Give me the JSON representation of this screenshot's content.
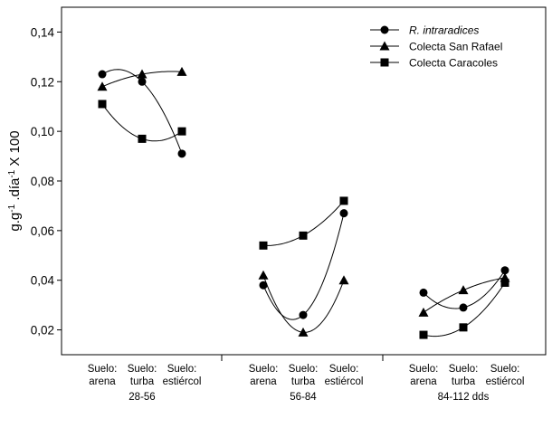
{
  "chart_data": {
    "type": "line",
    "title": "",
    "xlabel": "",
    "ylabel": "g.g-1.día-1 X 100",
    "ylabel_parts": {
      "base": "g.g",
      "sup1": "-1",
      "mid": " .día",
      "sup2": "-1",
      "tail": " X 100"
    },
    "ylim": [
      0.01,
      0.15
    ],
    "yticks": [
      "0,02",
      "0,04",
      "0,06",
      "0,08",
      "0,10",
      "0,12",
      "0,14"
    ],
    "grid": false,
    "legend_position": "top-right",
    "groups": [
      {
        "period": "28-56",
        "categories": [
          [
            "Suelo:",
            "arena"
          ],
          [
            "Suelo:",
            "turba"
          ],
          [
            "Suelo:",
            "estiércol"
          ]
        ]
      },
      {
        "period": "56-84",
        "categories": [
          [
            "Suelo:",
            "arena"
          ],
          [
            "Suelo:",
            "turba"
          ],
          [
            "Suelo:",
            "estiércol"
          ]
        ]
      },
      {
        "period": "84-112 dds",
        "categories": [
          [
            "Suelo:",
            "arena"
          ],
          [
            "Suelo:",
            "turba"
          ],
          [
            "Suelo:",
            "estiércol"
          ]
        ]
      }
    ],
    "series": [
      {
        "name": "R. intraradices",
        "italic": true,
        "marker": "circle",
        "values": [
          [
            0.123,
            0.12,
            0.091
          ],
          [
            0.038,
            0.026,
            0.067
          ],
          [
            0.035,
            0.029,
            0.044
          ]
        ]
      },
      {
        "name": "Colecta San Rafael",
        "italic": false,
        "marker": "triangle",
        "values": [
          [
            0.118,
            0.123,
            0.124
          ],
          [
            0.042,
            0.019,
            0.04
          ],
          [
            0.027,
            0.036,
            0.041
          ]
        ]
      },
      {
        "name": "Colecta Caracoles",
        "italic": false,
        "marker": "square",
        "values": [
          [
            0.111,
            0.097,
            0.1
          ],
          [
            0.054,
            0.058,
            0.072
          ],
          [
            0.018,
            0.021,
            0.039
          ]
        ]
      }
    ]
  }
}
